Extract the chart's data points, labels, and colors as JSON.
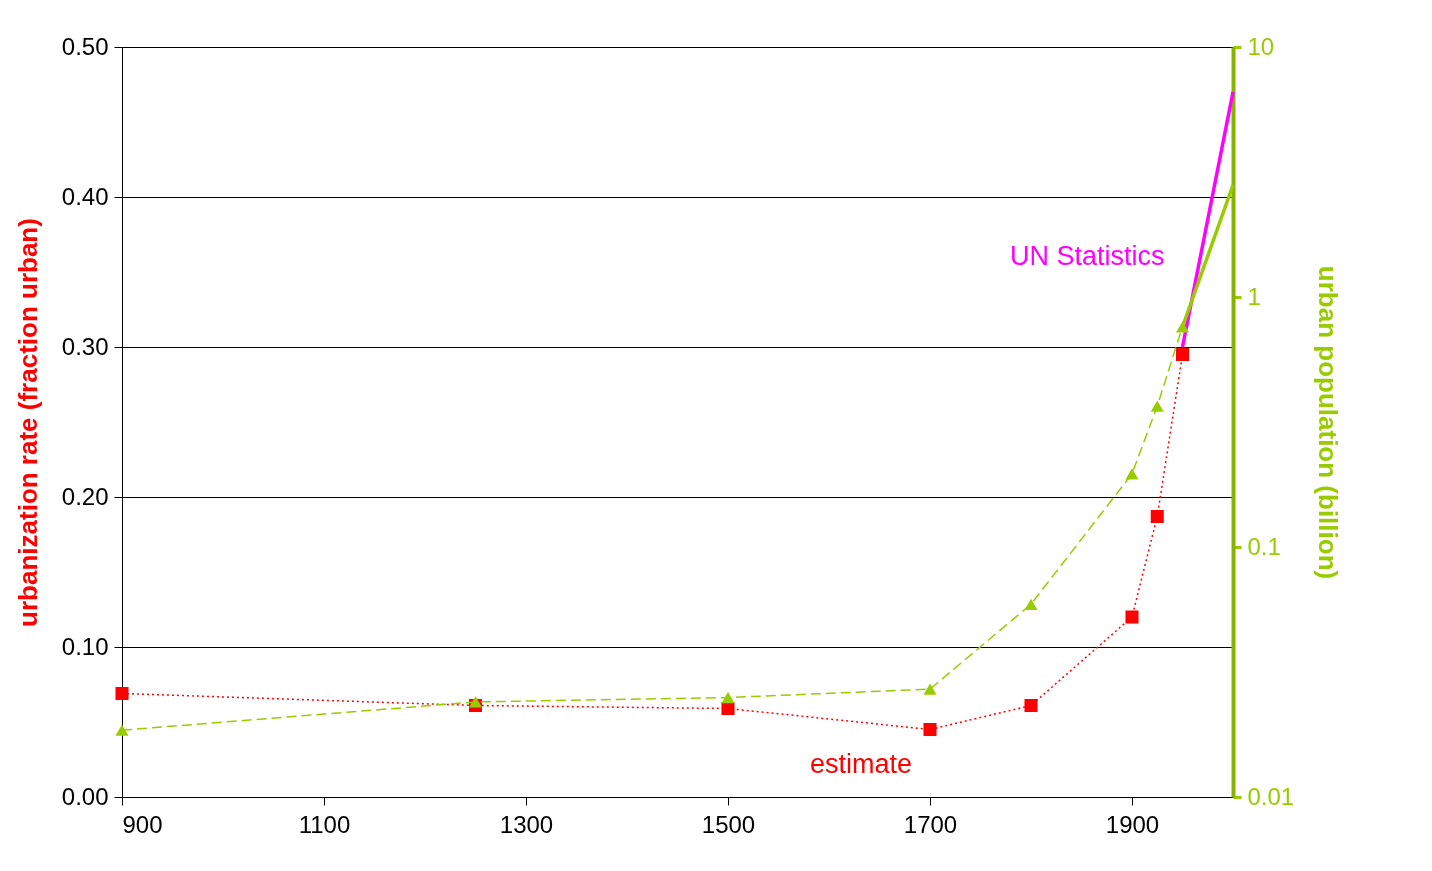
{
  "chart_data": {
    "type": "line",
    "xlabel": null,
    "ylabel": "urbanization rate (fraction urban)",
    "y2label": "urban population (billion)",
    "x": [
      900,
      1250,
      1500,
      1700,
      1800,
      1900,
      1925,
      1950,
      2000
    ],
    "xlim": [
      900,
      2000
    ],
    "xticks": [
      900,
      1100,
      1300,
      1500,
      1700,
      1900
    ],
    "ylim": [
      0,
      0.5
    ],
    "yticks": [
      {
        "value": 0,
        "label": "0.00"
      },
      {
        "value": 0.1,
        "label": "0.10"
      },
      {
        "value": 0.2,
        "label": "0.20"
      },
      {
        "value": 0.3,
        "label": "0.30"
      },
      {
        "value": 0.4,
        "label": "0.40"
      },
      {
        "value": 0.5,
        "label": "0.50"
      }
    ],
    "y2lim": [
      0.01,
      10
    ],
    "y2ticks": [
      0.01,
      0.1,
      1,
      10
    ],
    "log": "y2",
    "grid": "y",
    "legend": false,
    "series": [
      {
        "name": "estimate",
        "color": "#ff0000",
        "marker": "square",
        "line_style": "dotted",
        "values": [
          0.069,
          0.061,
          0.059,
          0.045,
          0.061,
          0.12,
          0.187,
          0.295,
          null
        ]
      },
      {
        "name": "UN Statistics",
        "color": "#ff00ff",
        "marker": "none",
        "line_style": "solid",
        "values": [
          null,
          null,
          null,
          null,
          null,
          null,
          null,
          0.3,
          0.47
        ]
      },
      {
        "color": "#99cc00",
        "marker": "triangle",
        "line_style": "dashed",
        "axis": "y2",
        "values": [
          0.0185,
          0.024,
          0.025,
          0.027,
          0.059,
          0.196,
          0.366,
          0.76,
          null
        ]
      },
      {
        "color": "#99cc00",
        "marker": "none",
        "line_style": "solid",
        "axis": "y2",
        "values": [
          null,
          null,
          null,
          null,
          null,
          null,
          null,
          0.76,
          2.8
        ]
      }
    ]
  }
}
